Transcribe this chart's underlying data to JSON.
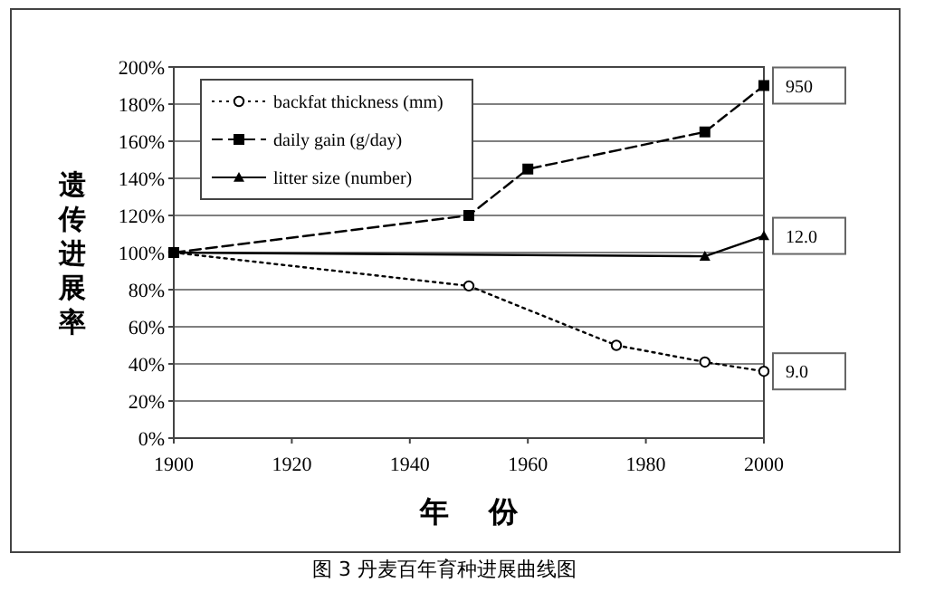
{
  "chart_data": {
    "type": "line",
    "title": "图 3  丹麦百年育种进展曲线图",
    "xlabel": "年    份",
    "ylabel": "遗传进展率",
    "xlim": [
      1900,
      2000
    ],
    "xticks": [
      1900,
      1920,
      1940,
      1960,
      1980,
      2000
    ],
    "ylim": [
      0,
      200
    ],
    "yticks": [
      {
        "value": 0,
        "label": "0%"
      },
      {
        "value": 20,
        "label": "20%"
      },
      {
        "value": 40,
        "label": "40%"
      },
      {
        "value": 60,
        "label": "60%"
      },
      {
        "value": 80,
        "label": "80%"
      },
      {
        "value": 100,
        "label": "100%"
      },
      {
        "value": 120,
        "label": "120%"
      },
      {
        "value": 140,
        "label": "140%"
      },
      {
        "value": 160,
        "label": "160%"
      },
      {
        "value": 180,
        "label": "180%"
      },
      {
        "value": 200,
        "label": "200%"
      }
    ],
    "grid": "y",
    "legend": "top left",
    "series": [
      {
        "name": "backfat thickness (mm)",
        "color": "#000000",
        "line_style": "dotted",
        "marker": "circle",
        "x": [
          1900,
          1950,
          1975,
          1990,
          2000
        ],
        "values": [
          100,
          82,
          50,
          41,
          36
        ]
      },
      {
        "name": "daily gain (g/day)",
        "color": "#000000",
        "line_style": "dashed",
        "marker": "square",
        "x": [
          1900,
          1950,
          1960,
          1990,
          2000
        ],
        "values": [
          100,
          120,
          145,
          165,
          190
        ]
      },
      {
        "name": "litter size (number)",
        "color": "#000000",
        "line_style": "solid",
        "marker": "triangle",
        "x": [
          1900,
          1990,
          2000
        ],
        "values": [
          100,
          98,
          109
        ]
      }
    ],
    "annotations": [
      "950",
      "12.0",
      "9.0"
    ]
  }
}
